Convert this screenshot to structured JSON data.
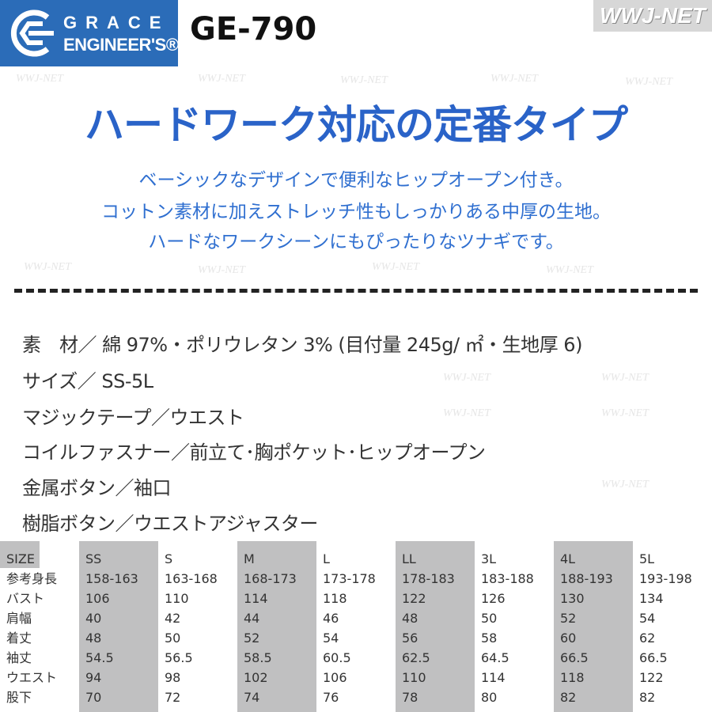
{
  "header": {
    "logo_line1": "GRACE",
    "logo_line2": "ENGINEER'S®",
    "model": "GE-790",
    "shop_badge": "WWJ-NET",
    "watermark": "WWJ-NET"
  },
  "headline": "ハードワーク対応の定番タイプ",
  "description": [
    "ベーシックなデザインで便利なヒップオープン付き。",
    "コットン素材に加えストレッチ性もしっかりある中厚の生地。",
    "ハードなワークシーンにもぴったりなツナギです。"
  ],
  "specs": [
    "素　材／ 綿 97%・ポリウレタン 3% (目付量 245g/ ㎡・生地厚 6)",
    "サイズ／ SS-5L",
    "マジックテープ／ウエスト",
    "コイルファスナー／前立て･胸ポケット･ヒップオープン",
    "金属ボタン／袖口",
    "樹脂ボタン／ウエストアジャスター"
  ],
  "size_table": {
    "header": [
      "SIZE",
      "SS",
      "S",
      "M",
      "L",
      "LL",
      "3L",
      "4L",
      "5L"
    ],
    "rows": [
      [
        "参考身長",
        "158-163",
        "163-168",
        "168-173",
        "173-178",
        "178-183",
        "183-188",
        "188-193",
        "193-198"
      ],
      [
        "バスト",
        "106",
        "110",
        "114",
        "118",
        "122",
        "126",
        "130",
        "134"
      ],
      [
        "肩幅",
        "40",
        "42",
        "44",
        "46",
        "48",
        "50",
        "52",
        "54"
      ],
      [
        "着丈",
        "48",
        "50",
        "52",
        "54",
        "56",
        "58",
        "60",
        "62"
      ],
      [
        "袖丈",
        "54.5",
        "56.5",
        "58.5",
        "60.5",
        "62.5",
        "64.5",
        "66.5",
        "66.5"
      ],
      [
        "ウエスト",
        "94",
        "98",
        "102",
        "106",
        "110",
        "114",
        "118",
        "122"
      ],
      [
        "股下",
        "70",
        "72",
        "74",
        "76",
        "78",
        "80",
        "82",
        "82"
      ]
    ]
  },
  "colors": {
    "brand_blue": "#2b6cb8",
    "headline_blue": "#2a63c8",
    "shade_gray": "#c0c0c1"
  }
}
